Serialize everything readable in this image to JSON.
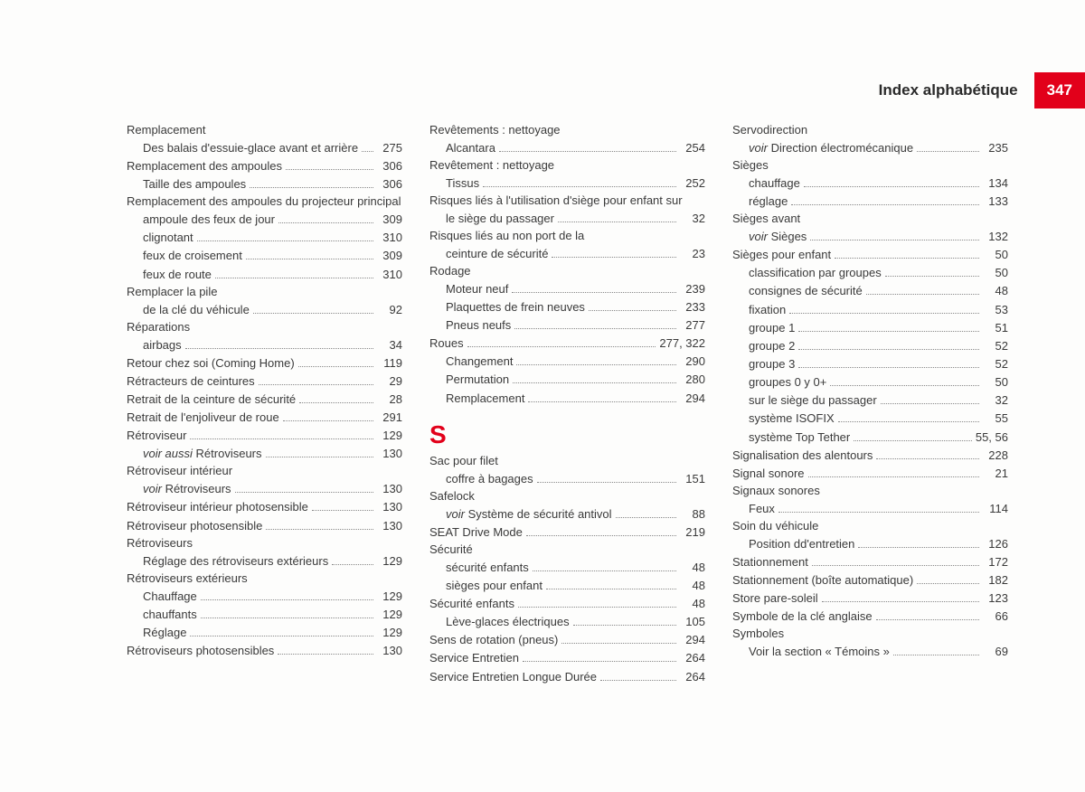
{
  "header": {
    "title": "Index alphabétique",
    "pageNumber": "347"
  },
  "sectionLetter": "S",
  "col1": [
    {
      "type": "heading",
      "label": "Remplacement"
    },
    {
      "type": "sub",
      "label": "Des balais d'essuie-glace avant et arrière",
      "page": "275"
    },
    {
      "type": "entry",
      "label": "Remplacement des ampoules",
      "page": "306"
    },
    {
      "type": "sub",
      "label": "Taille des ampoules",
      "page": "306"
    },
    {
      "type": "heading",
      "label": "Remplacement des ampoules du projecteur principal"
    },
    {
      "type": "sub",
      "label": "ampoule des feux de jour",
      "page": "309"
    },
    {
      "type": "sub",
      "label": "clignotant",
      "page": "310"
    },
    {
      "type": "sub",
      "label": "feux de croisement",
      "page": "309"
    },
    {
      "type": "sub",
      "label": "feux de route",
      "page": "310"
    },
    {
      "type": "heading",
      "label": "Remplacer la pile"
    },
    {
      "type": "sub",
      "label": "de la clé du véhicule",
      "page": "92"
    },
    {
      "type": "heading",
      "label": "Réparations"
    },
    {
      "type": "sub",
      "label": "airbags",
      "page": "34"
    },
    {
      "type": "entry",
      "label": "Retour chez soi (Coming Home)",
      "page": "119"
    },
    {
      "type": "entry",
      "label": "Rétracteurs de ceintures",
      "page": "29"
    },
    {
      "type": "entry",
      "label": "Retrait de la ceinture de sécurité",
      "page": "28"
    },
    {
      "type": "entry",
      "label": "Retrait de l'enjoliveur de roue",
      "page": "291"
    },
    {
      "type": "entry",
      "label": "Rétroviseur",
      "page": "129"
    },
    {
      "type": "sub",
      "italicPrefix": "voir aussi ",
      "label": "Rétroviseurs",
      "page": "130"
    },
    {
      "type": "heading",
      "label": "Rétroviseur intérieur"
    },
    {
      "type": "sub",
      "italicPrefix": "voir ",
      "label": "Rétroviseurs",
      "page": "130"
    },
    {
      "type": "entry",
      "label": "Rétroviseur intérieur photosensible",
      "page": "130"
    },
    {
      "type": "entry",
      "label": "Rétroviseur photosensible",
      "page": "130"
    },
    {
      "type": "heading",
      "label": "Rétroviseurs"
    },
    {
      "type": "sub",
      "label": "Réglage des rétroviseurs extérieurs",
      "page": "129"
    },
    {
      "type": "heading",
      "label": "Rétroviseurs extérieurs"
    },
    {
      "type": "sub",
      "label": "Chauffage",
      "page": "129"
    },
    {
      "type": "sub",
      "label": "chauffants",
      "page": "129"
    },
    {
      "type": "sub",
      "label": "Réglage",
      "page": "129"
    },
    {
      "type": "entry",
      "label": "Rétroviseurs photosensibles",
      "page": "130"
    }
  ],
  "col2top": [
    {
      "type": "heading",
      "label": "Revêtements : nettoyage"
    },
    {
      "type": "sub",
      "label": "Alcantara",
      "page": "254"
    },
    {
      "type": "heading",
      "label": "Revêtement : nettoyage"
    },
    {
      "type": "sub",
      "label": "Tissus",
      "page": "252"
    },
    {
      "type": "wrap",
      "label": "Risques liés à l'utilisation d'siège pour enfant sur le siège du passager",
      "page": "32"
    },
    {
      "type": "wrap",
      "label": "Risques liés au non port de la ceinture de sécurité",
      "page": "23"
    },
    {
      "type": "heading",
      "label": "Rodage"
    },
    {
      "type": "sub",
      "label": "Moteur neuf",
      "page": "239"
    },
    {
      "type": "sub",
      "label": "Plaquettes de frein neuves",
      "page": "233"
    },
    {
      "type": "sub",
      "label": "Pneus neufs",
      "page": "277"
    },
    {
      "type": "entry",
      "label": "Roues",
      "page": "277, 322"
    },
    {
      "type": "sub",
      "label": "Changement",
      "page": "290"
    },
    {
      "type": "sub",
      "label": "Permutation",
      "page": "280"
    },
    {
      "type": "sub",
      "label": "Remplacement",
      "page": "294"
    }
  ],
  "col2bottom": [
    {
      "type": "heading",
      "label": "Sac pour filet"
    },
    {
      "type": "sub",
      "label": "coffre à bagages",
      "page": "151"
    },
    {
      "type": "heading",
      "label": "Safelock"
    },
    {
      "type": "sub",
      "italicPrefix": "voir ",
      "label": "Système de sécurité antivol",
      "page": "88"
    },
    {
      "type": "entry",
      "label": "SEAT Drive Mode",
      "page": "219"
    },
    {
      "type": "heading",
      "label": "Sécurité"
    },
    {
      "type": "sub",
      "label": "sécurité enfants",
      "page": "48"
    },
    {
      "type": "sub",
      "label": "sièges pour enfant",
      "page": "48"
    },
    {
      "type": "entry",
      "label": "Sécurité enfants",
      "page": "48"
    },
    {
      "type": "sub",
      "label": "Lève-glaces électriques",
      "page": "105"
    },
    {
      "type": "entry",
      "label": "Sens de rotation (pneus)",
      "page": "294"
    },
    {
      "type": "entry",
      "label": "Service Entretien",
      "page": "264"
    },
    {
      "type": "entry",
      "label": "Service Entretien Longue Durée",
      "page": "264"
    }
  ],
  "col3": [
    {
      "type": "heading",
      "label": "Servodirection"
    },
    {
      "type": "sub",
      "italicPrefix": "voir ",
      "label": "Direction électromécanique",
      "page": "235"
    },
    {
      "type": "heading",
      "label": "Sièges"
    },
    {
      "type": "sub",
      "label": "chauffage",
      "page": "134"
    },
    {
      "type": "sub",
      "label": "réglage",
      "page": "133"
    },
    {
      "type": "heading",
      "label": "Sièges avant"
    },
    {
      "type": "sub",
      "italicPrefix": "voir ",
      "label": "Sièges",
      "page": "132"
    },
    {
      "type": "entry",
      "label": "Sièges pour enfant",
      "page": "50"
    },
    {
      "type": "sub",
      "label": "classification par groupes",
      "page": "50"
    },
    {
      "type": "sub",
      "label": "consignes de sécurité",
      "page": "48"
    },
    {
      "type": "sub",
      "label": "fixation",
      "page": "53"
    },
    {
      "type": "sub",
      "label": "groupe 1",
      "page": "51"
    },
    {
      "type": "sub",
      "label": "groupe 2",
      "page": "52"
    },
    {
      "type": "sub",
      "label": "groupe 3",
      "page": "52"
    },
    {
      "type": "sub",
      "label": "groupes 0 y 0+",
      "page": "50"
    },
    {
      "type": "sub",
      "label": "sur le siège du passager",
      "page": "32"
    },
    {
      "type": "sub",
      "label": "système ISOFIX",
      "page": "55"
    },
    {
      "type": "sub",
      "label": "système Top Tether",
      "page": "55, 56"
    },
    {
      "type": "entry",
      "label": "Signalisation des alentours",
      "page": "228"
    },
    {
      "type": "entry",
      "label": "Signal sonore",
      "page": "21"
    },
    {
      "type": "heading",
      "label": "Signaux sonores"
    },
    {
      "type": "sub",
      "label": "Feux",
      "page": "114"
    },
    {
      "type": "heading",
      "label": "Soin du véhicule"
    },
    {
      "type": "sub",
      "label": "Position dd'entretien",
      "page": "126"
    },
    {
      "type": "entry",
      "label": "Stationnement",
      "page": "172"
    },
    {
      "type": "entry",
      "label": "Stationnement (boîte automatique)",
      "page": "182"
    },
    {
      "type": "entry",
      "label": "Store pare-soleil",
      "page": "123"
    },
    {
      "type": "entry",
      "label": "Symbole de la clé anglaise",
      "page": "66"
    },
    {
      "type": "heading",
      "label": "Symboles"
    },
    {
      "type": "sub",
      "label": "Voir la section « Témoins »",
      "page": "69"
    }
  ]
}
